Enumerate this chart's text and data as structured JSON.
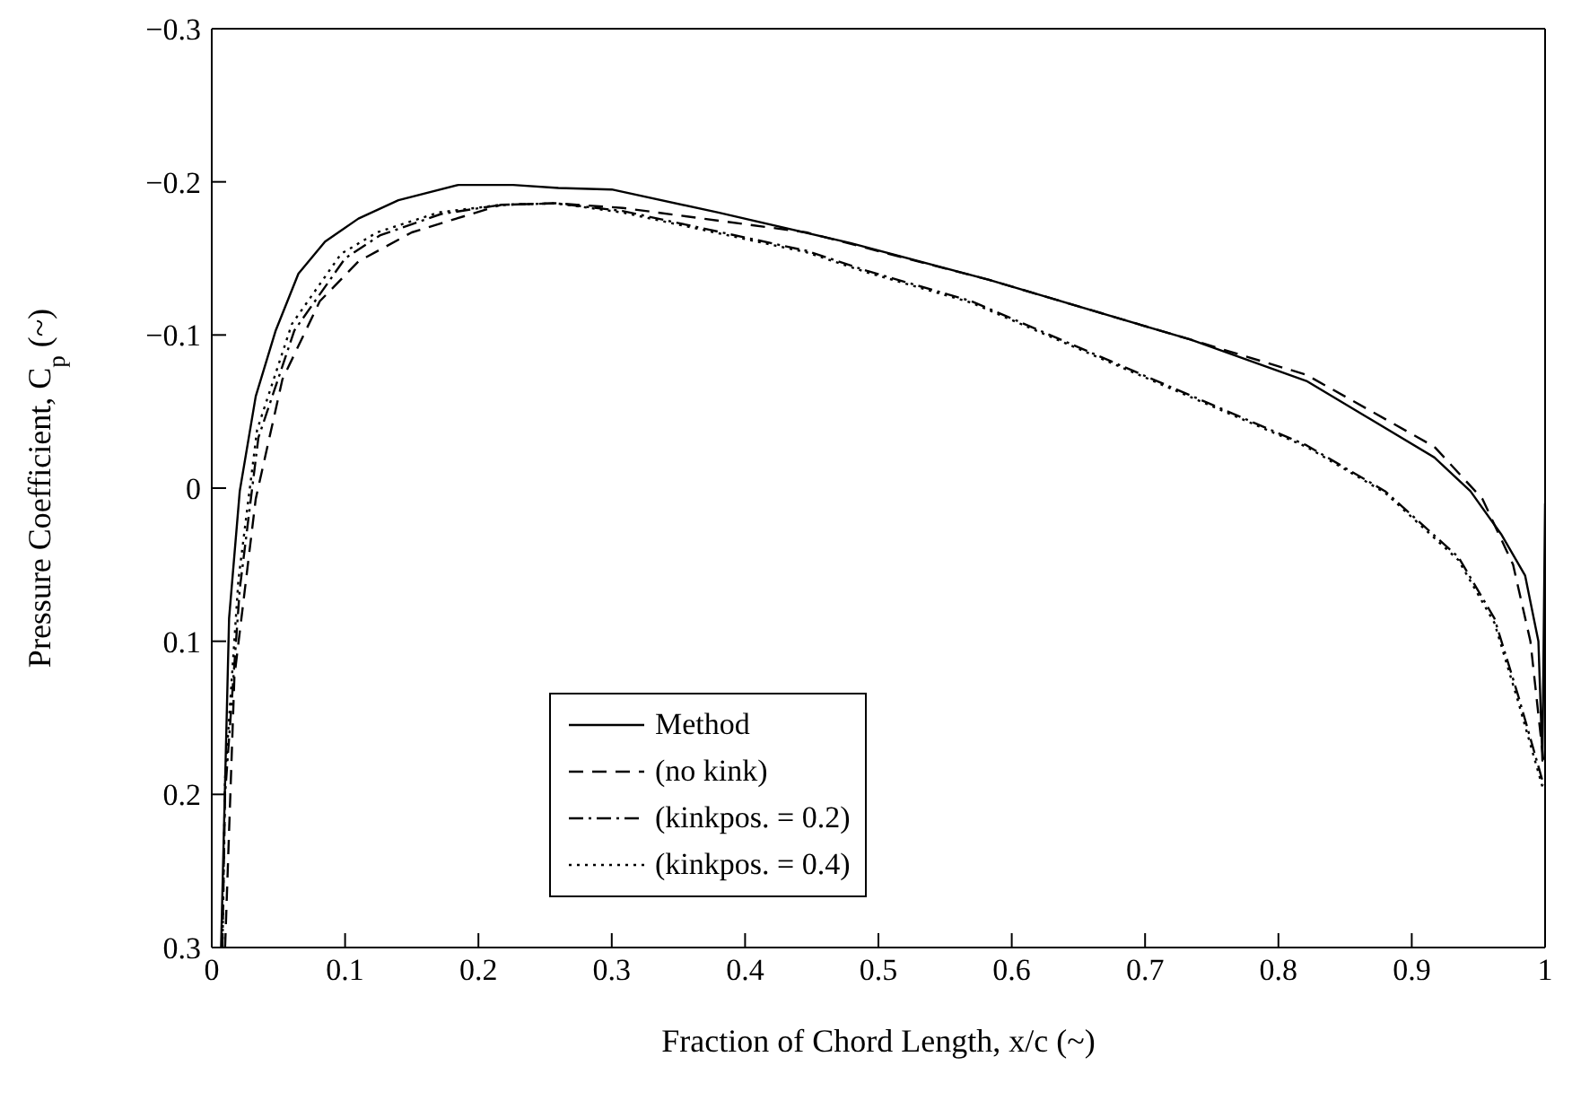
{
  "chart_data": {
    "type": "line",
    "xlabel": "Fraction of Chord Length, x/c (~)",
    "ylabel": "Pressure Coefficient, C$_{p}$ (~)",
    "xlim": [
      0,
      1
    ],
    "xticks": [
      0,
      0.1,
      0.2,
      0.3,
      0.4,
      0.5,
      0.6,
      0.7,
      0.8,
      0.9,
      1
    ],
    "ylim": [
      0.3,
      -0.3
    ],
    "yticks": [
      {
        "value": -0.3,
        "label": "−0.3"
      },
      {
        "value": -0.2,
        "label": "−0.2"
      },
      {
        "value": -0.1,
        "label": "−0.1"
      },
      0,
      0.1,
      0.2,
      0.3
    ],
    "legend": "bottom",
    "grid": false,
    "marker": "none",
    "series": [
      {
        "name": "Method",
        "color": "#000000",
        "line_style": "solid",
        "x": [
          0.007,
          0.013,
          0.021,
          0.033,
          0.048,
          0.065,
          0.085,
          0.11,
          0.14,
          0.185,
          0.226,
          0.26,
          0.3,
          0.38,
          0.479,
          0.583,
          0.734,
          0.821,
          0.917,
          0.944,
          0.967,
          0.985,
          0.995,
          0.998,
          1.0
        ],
        "values": [
          0.3,
          0.085,
          0.002,
          -0.06,
          -0.103,
          -0.14,
          -0.161,
          -0.176,
          -0.188,
          -0.198,
          -0.198,
          -0.196,
          -0.195,
          -0.18,
          -0.16,
          -0.136,
          -0.097,
          -0.07,
          -0.02,
          0.002,
          0.03,
          0.057,
          0.1,
          0.178,
          0.01
        ]
      },
      {
        "name": "(no kink)",
        "color": "#000000",
        "line_style": "dashed",
        "x": [
          0.01,
          0.017,
          0.033,
          0.053,
          0.081,
          0.11,
          0.15,
          0.217,
          0.258,
          0.308,
          0.446,
          0.583,
          0.734,
          0.821,
          0.917,
          0.953,
          0.976,
          0.989,
          0.999
        ],
        "values": [
          0.3,
          0.123,
          0.007,
          -0.071,
          -0.122,
          -0.148,
          -0.167,
          -0.185,
          -0.186,
          -0.183,
          -0.167,
          -0.136,
          -0.097,
          -0.074,
          -0.027,
          0.007,
          0.05,
          0.1,
          0.18
        ]
      },
      {
        "name": "(kinkpos. = 0.2)",
        "color": "#000000",
        "line_style": "dashdot",
        "x": [
          0.008,
          0.01,
          0.021,
          0.035,
          0.062,
          0.1,
          0.126,
          0.172,
          0.217,
          0.258,
          0.308,
          0.446,
          0.491,
          0.57,
          0.706,
          0.821,
          0.88,
          0.935,
          0.962,
          0.98,
          0.999
        ],
        "values": [
          0.3,
          0.2,
          0.066,
          -0.033,
          -0.103,
          -0.15,
          -0.165,
          -0.179,
          -0.185,
          -0.186,
          -0.181,
          -0.155,
          -0.142,
          -0.122,
          -0.071,
          -0.028,
          0.002,
          0.045,
          0.085,
          0.136,
          0.194
        ]
      },
      {
        "name": "(kinkpos. = 0.4)",
        "color": "#000000",
        "line_style": "dotted",
        "x": [
          0.008,
          0.01,
          0.02,
          0.034,
          0.06,
          0.097,
          0.124,
          0.17,
          0.217,
          0.258,
          0.308,
          0.446,
          0.491,
          0.57,
          0.706,
          0.821,
          0.88,
          0.935,
          0.962,
          0.98,
          0.999
        ],
        "values": [
          0.3,
          0.19,
          0.06,
          -0.038,
          -0.107,
          -0.153,
          -0.167,
          -0.18,
          -0.185,
          -0.186,
          -0.18,
          -0.154,
          -0.141,
          -0.121,
          -0.07,
          -0.027,
          0.003,
          0.047,
          0.088,
          0.14,
          0.198
        ]
      }
    ]
  }
}
